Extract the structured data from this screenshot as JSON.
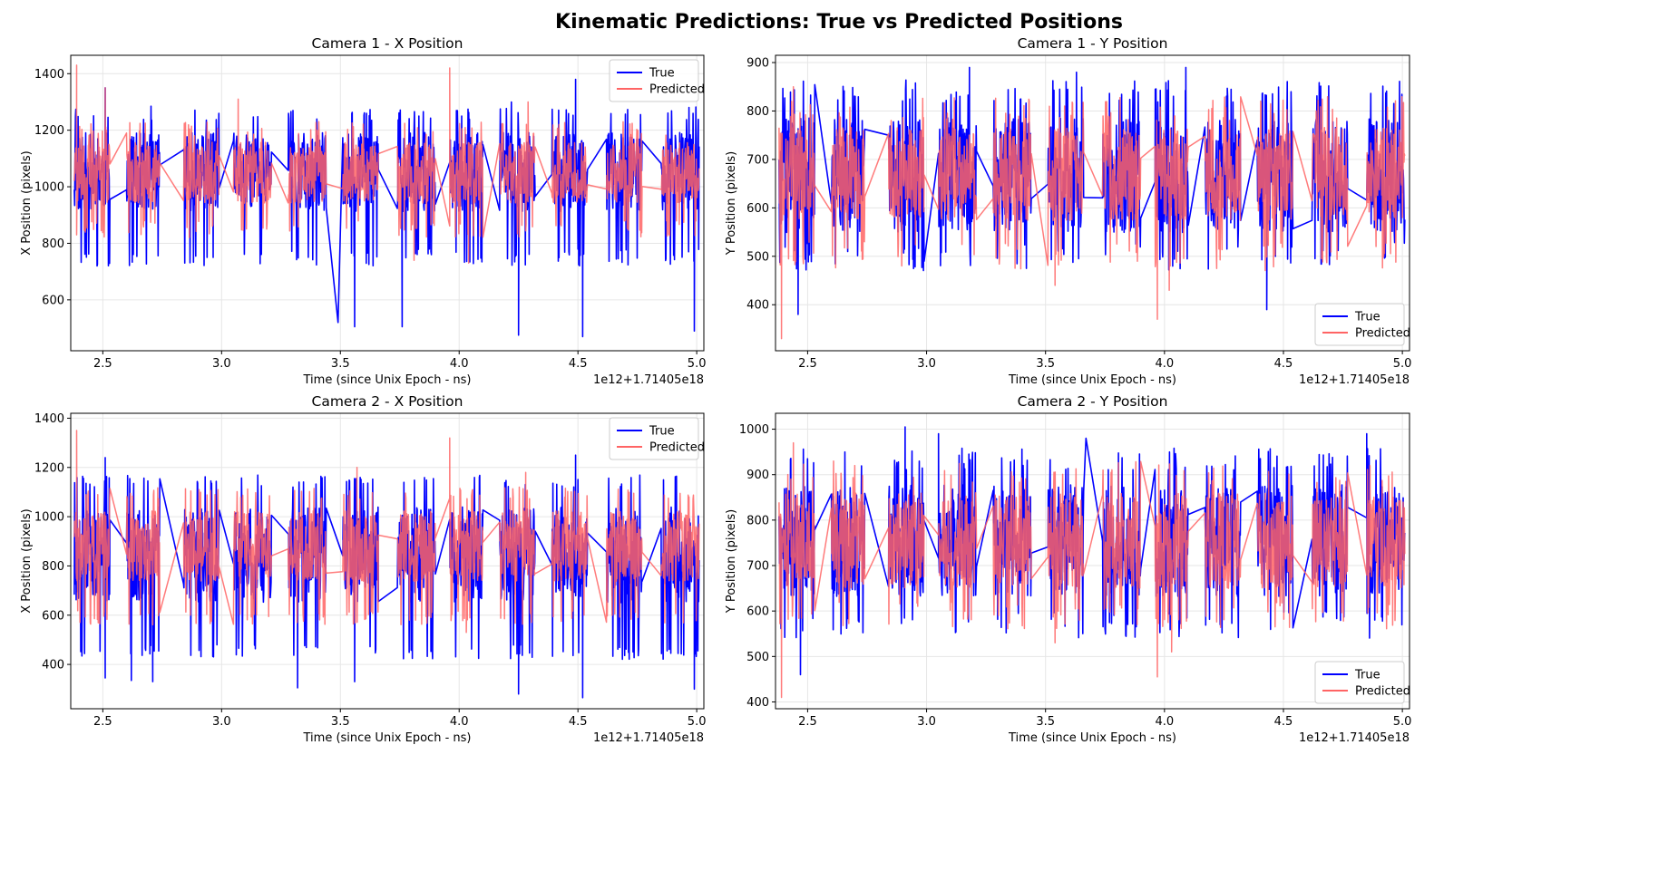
{
  "figure": {
    "title": "Kinematic Predictions: True vs Predicted Positions"
  },
  "colors": {
    "true": "#0000ff",
    "predicted": "#ff6464",
    "grid": "#e6e6e6",
    "axes": "#000000"
  },
  "chart_data": [
    {
      "type": "line",
      "title": "Camera 1 - X Position",
      "xlabel": "Time (since Unix Epoch - ns)",
      "ylabel": "X Position (pixels)",
      "offset_text": "1e12+1.71405e18",
      "xlim": [
        2.365,
        5.03
      ],
      "ylim": [
        420,
        1465
      ],
      "xticks": [
        2.5,
        3.0,
        3.5,
        4.0,
        4.5,
        5.0
      ],
      "xtick_labels": [
        "2.5",
        "3.0",
        "3.5",
        "4.0",
        "4.5",
        "5.0"
      ],
      "yticks": [
        600,
        800,
        1000,
        1200,
        1400
      ],
      "ytick_labels": [
        "600",
        "800",
        "1000",
        "1200",
        "1400"
      ],
      "grid": true,
      "legend_position": "upper right",
      "bursts": [
        [
          2.38,
          2.53
        ],
        [
          2.6,
          2.74
        ],
        [
          2.84,
          2.99
        ],
        [
          3.05,
          3.21
        ],
        [
          3.28,
          3.44
        ],
        [
          3.51,
          3.66
        ],
        [
          3.74,
          3.9
        ],
        [
          3.96,
          4.1
        ],
        [
          4.17,
          4.32
        ],
        [
          4.39,
          4.54
        ],
        [
          4.62,
          4.77
        ],
        [
          4.85,
          5.01
        ]
      ],
      "true_peaks": [
        [
          3.49,
          520
        ],
        [
          3.56,
          505
        ],
        [
          3.76,
          505
        ],
        [
          4.25,
          475
        ],
        [
          4.52,
          470
        ],
        [
          4.99,
          490
        ],
        [
          2.51,
          1350
        ],
        [
          3.61,
          1260
        ],
        [
          4.49,
          1380
        ],
        [
          4.22,
          1300
        ]
      ],
      "pred_peaks": [
        [
          2.39,
          1430
        ],
        [
          2.51,
          1350
        ],
        [
          3.96,
          1420
        ],
        [
          3.07,
          1310
        ],
        [
          4.29,
          1300
        ],
        [
          2.39,
          830
        ],
        [
          4.04,
          730
        ],
        [
          3.81,
          740
        ]
      ],
      "series": [
        {
          "name": "True",
          "color": "#0000ff",
          "center": 1040,
          "lo": 820,
          "hi": 1285,
          "extreme_lo": 720,
          "seed": 11
        },
        {
          "name": "Predicted",
          "color": "#ff6464",
          "center": 1050,
          "lo": 870,
          "hi": 1230,
          "extreme_lo": 820,
          "seed": 23
        }
      ]
    },
    {
      "type": "line",
      "title": "Camera 1 - Y Position",
      "xlabel": "Time (since Unix Epoch - ns)",
      "ylabel": "Y Position (pixels)",
      "offset_text": "1e12+1.71405e18",
      "xlim": [
        2.365,
        5.03
      ],
      "ylim": [
        305,
        915
      ],
      "xticks": [
        2.5,
        3.0,
        3.5,
        4.0,
        4.5,
        5.0
      ],
      "xtick_labels": [
        "2.5",
        "3.0",
        "3.5",
        "4.0",
        "4.5",
        "5.0"
      ],
      "yticks": [
        400,
        500,
        600,
        700,
        800,
        900
      ],
      "ytick_labels": [
        "400",
        "500",
        "600",
        "700",
        "800",
        "900"
      ],
      "grid": true,
      "legend_position": "lower right",
      "bursts": [
        [
          2.38,
          2.53
        ],
        [
          2.6,
          2.74
        ],
        [
          2.84,
          2.99
        ],
        [
          3.05,
          3.21
        ],
        [
          3.28,
          3.44
        ],
        [
          3.51,
          3.66
        ],
        [
          3.74,
          3.9
        ],
        [
          3.96,
          4.1
        ],
        [
          4.17,
          4.32
        ],
        [
          4.39,
          4.54
        ],
        [
          4.62,
          4.77
        ],
        [
          4.85,
          5.01
        ]
      ],
      "true_peaks": [
        [
          2.46,
          380
        ],
        [
          4.43,
          390
        ],
        [
          3.18,
          890
        ],
        [
          4.09,
          890
        ],
        [
          3.63,
          880
        ]
      ],
      "pred_peaks": [
        [
          2.39,
          330
        ],
        [
          3.97,
          370
        ],
        [
          2.44,
          850
        ],
        [
          4.02,
          430
        ],
        [
          3.54,
          440
        ]
      ],
      "series": [
        {
          "name": "True",
          "color": "#0000ff",
          "center": 680,
          "lo": 470,
          "hi": 865,
          "extreme_lo": 470,
          "seed": 37
        },
        {
          "name": "Predicted",
          "color": "#ff6464",
          "center": 690,
          "lo": 510,
          "hi": 830,
          "extreme_lo": 470,
          "seed": 41
        }
      ]
    },
    {
      "type": "line",
      "title": "Camera 2 - X Position",
      "xlabel": "Time (since Unix Epoch - ns)",
      "ylabel": "X Position (pixels)",
      "offset_text": "1e12+1.71405e18",
      "xlim": [
        2.365,
        5.03
      ],
      "ylim": [
        220,
        1420
      ],
      "xticks": [
        2.5,
        3.0,
        3.5,
        4.0,
        4.5,
        5.0
      ],
      "xtick_labels": [
        "2.5",
        "3.0",
        "3.5",
        "4.0",
        "4.5",
        "5.0"
      ],
      "yticks": [
        400,
        600,
        800,
        1000,
        1200,
        1400
      ],
      "ytick_labels": [
        "400",
        "600",
        "800",
        "1000",
        "1200",
        "1400"
      ],
      "grid": true,
      "legend_position": "upper right",
      "bursts": [
        [
          2.38,
          2.53
        ],
        [
          2.6,
          2.74
        ],
        [
          2.84,
          2.99
        ],
        [
          3.05,
          3.21
        ],
        [
          3.28,
          3.44
        ],
        [
          3.51,
          3.66
        ],
        [
          3.74,
          3.9
        ],
        [
          3.96,
          4.1
        ],
        [
          4.17,
          4.32
        ],
        [
          4.39,
          4.54
        ],
        [
          4.62,
          4.77
        ],
        [
          4.85,
          5.01
        ]
      ],
      "true_peaks": [
        [
          2.51,
          345
        ],
        [
          2.62,
          335
        ],
        [
          2.71,
          330
        ],
        [
          3.32,
          305
        ],
        [
          3.56,
          330
        ],
        [
          4.25,
          280
        ],
        [
          4.52,
          265
        ],
        [
          4.99,
          300
        ],
        [
          4.49,
          1250
        ],
        [
          2.51,
          1240
        ]
      ],
      "pred_peaks": [
        [
          2.39,
          1350
        ],
        [
          3.96,
          1320
        ],
        [
          3.57,
          1200
        ],
        [
          4.28,
          1180
        ],
        [
          4.03,
          530
        ]
      ],
      "series": [
        {
          "name": "True",
          "color": "#0000ff",
          "center": 900,
          "lo": 520,
          "hi": 1170,
          "extreme_lo": 420,
          "seed": 53
        },
        {
          "name": "Predicted",
          "color": "#ff6464",
          "center": 910,
          "lo": 640,
          "hi": 1120,
          "extreme_lo": 560,
          "seed": 59
        }
      ]
    },
    {
      "type": "line",
      "title": "Camera 2 - Y Position",
      "xlabel": "Time (since Unix Epoch - ns)",
      "ylabel": "Y Position (pixels)",
      "offset_text": "1e12+1.71405e18",
      "xlim": [
        2.365,
        5.03
      ],
      "ylim": [
        385,
        1035
      ],
      "xticks": [
        2.5,
        3.0,
        3.5,
        4.0,
        4.5,
        5.0
      ],
      "xtick_labels": [
        "2.5",
        "3.0",
        "3.5",
        "4.0",
        "4.5",
        "5.0"
      ],
      "yticks": [
        400,
        500,
        600,
        700,
        800,
        900,
        1000
      ],
      "ytick_labels": [
        "400",
        "500",
        "600",
        "700",
        "800",
        "900",
        "1000"
      ],
      "grid": true,
      "legend_position": "lower right",
      "bursts": [
        [
          2.38,
          2.53
        ],
        [
          2.6,
          2.74
        ],
        [
          2.84,
          2.99
        ],
        [
          3.05,
          3.21
        ],
        [
          3.28,
          3.44
        ],
        [
          3.51,
          3.66
        ],
        [
          3.74,
          3.9
        ],
        [
          3.96,
          4.1
        ],
        [
          4.17,
          4.32
        ],
        [
          4.39,
          4.54
        ],
        [
          4.62,
          4.77
        ],
        [
          4.85,
          5.01
        ]
      ],
      "true_peaks": [
        [
          2.47,
          460
        ],
        [
          2.91,
          1005
        ],
        [
          3.05,
          990
        ],
        [
          4.85,
          990
        ],
        [
          3.67,
          980
        ]
      ],
      "pred_peaks": [
        [
          2.39,
          410
        ],
        [
          3.97,
          455
        ],
        [
          2.44,
          970
        ],
        [
          4.03,
          510
        ],
        [
          3.54,
          530
        ]
      ],
      "series": [
        {
          "name": "True",
          "color": "#0000ff",
          "center": 770,
          "lo": 550,
          "hi": 960,
          "extreme_lo": 540,
          "seed": 71
        },
        {
          "name": "Predicted",
          "color": "#ff6464",
          "center": 775,
          "lo": 580,
          "hi": 930,
          "extreme_lo": 560,
          "seed": 73
        }
      ]
    }
  ]
}
